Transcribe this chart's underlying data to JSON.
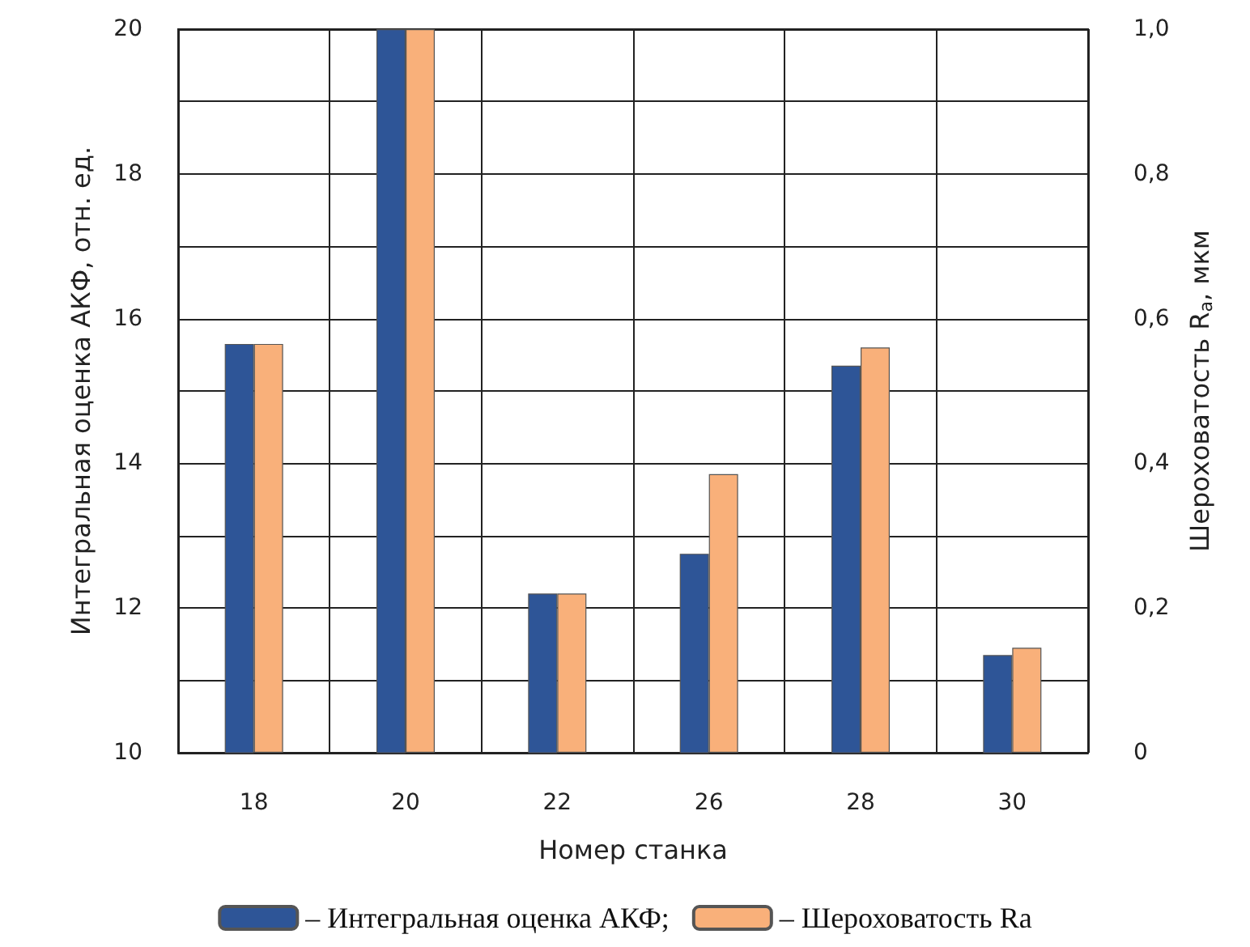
{
  "chart_data": {
    "type": "bar",
    "xlabel": "Номер станка",
    "ylabel": "Интегральная оценка АКФ, отн. ед.",
    "y2label": "Шероховатость R$_{a}$, мкм",
    "categories": [
      "18",
      "20",
      "22",
      "26",
      "28",
      "30"
    ],
    "series": [
      {
        "name": "– Интегральная оценка АКФ;",
        "color": "#2e5597",
        "values": [
          15.65,
          20,
          12.2,
          12.75,
          15.35,
          11.35
        ]
      },
      {
        "name": "– Шероховатость Ra",
        "color": "#f9b07a",
        "axis": "y2",
        "values": [
          0.565,
          1.0,
          0.22,
          0.385,
          0.56,
          0.145
        ]
      }
    ],
    "ylim": [
      10,
      20
    ],
    "yticks": [
      10,
      {
        "value": 11,
        "label": null
      },
      12,
      {
        "value": 13,
        "label": null
      },
      14,
      {
        "value": 15,
        "label": null
      },
      16,
      {
        "value": 17,
        "label": null
      },
      18,
      {
        "value": 19,
        "label": null
      },
      20
    ],
    "y2lim": [
      0,
      1
    ],
    "y2ticks": [
      {
        "value": 0,
        "label": "0"
      },
      {
        "value": 0.2,
        "label": "0,2"
      },
      {
        "value": 0.4,
        "label": "0,4"
      },
      {
        "value": 0.6,
        "label": "0,6"
      },
      {
        "value": 0.8,
        "label": "0,8"
      },
      {
        "value": 1,
        "label": "1,0"
      }
    ],
    "grid": true,
    "legend": "bottom"
  }
}
